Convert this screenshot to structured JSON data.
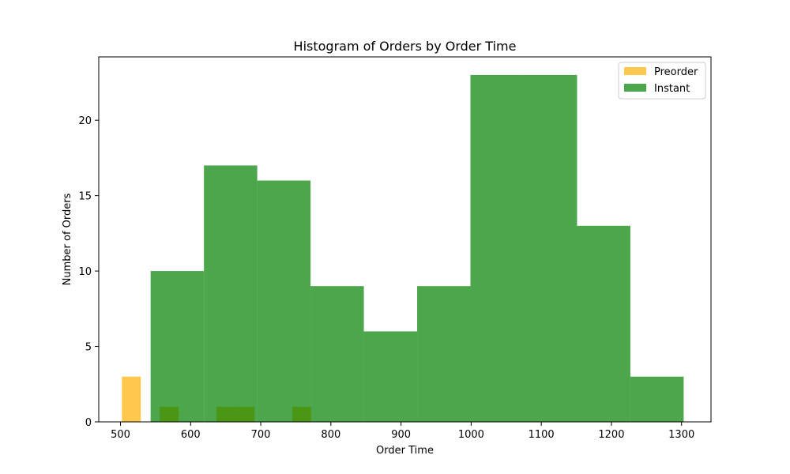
{
  "chart_data": {
    "type": "histogram",
    "title": "Histogram of Orders by Order Time",
    "xlabel": "Order Time",
    "ylabel": "Number of Orders",
    "xlim": [
      469,
      1342
    ],
    "ylim": [
      0,
      24.2
    ],
    "x_ticks": [
      500,
      600,
      700,
      800,
      900,
      1000,
      1100,
      1200,
      1300
    ],
    "y_ticks": [
      0,
      5,
      10,
      15,
      20
    ],
    "grid": false,
    "legend_position": "top-right",
    "series": [
      {
        "name": "Preorder",
        "color": "#ffb000",
        "opacity": 0.7,
        "bins": [
          {
            "start": 502,
            "end": 529,
            "count": 3
          },
          {
            "start": 529,
            "end": 556,
            "count": 0
          },
          {
            "start": 556,
            "end": 583,
            "count": 1
          },
          {
            "start": 583,
            "end": 610,
            "count": 0
          },
          {
            "start": 610,
            "end": 637,
            "count": 0
          },
          {
            "start": 637,
            "end": 664,
            "count": 1
          },
          {
            "start": 664,
            "end": 691,
            "count": 1
          },
          {
            "start": 691,
            "end": 718,
            "count": 0
          },
          {
            "start": 718,
            "end": 745,
            "count": 0
          },
          {
            "start": 745,
            "end": 772,
            "count": 1
          }
        ]
      },
      {
        "name": "Instant",
        "color": "#008000",
        "opacity": 0.7,
        "bins": [
          {
            "start": 543,
            "end": 619,
            "count": 10
          },
          {
            "start": 619,
            "end": 695,
            "count": 17
          },
          {
            "start": 695,
            "end": 771,
            "count": 16
          },
          {
            "start": 771,
            "end": 847,
            "count": 9
          },
          {
            "start": 847,
            "end": 923,
            "count": 6
          },
          {
            "start": 923,
            "end": 999,
            "count": 9
          },
          {
            "start": 999,
            "end": 1075,
            "count": 23
          },
          {
            "start": 1075,
            "end": 1151,
            "count": 23
          },
          {
            "start": 1151,
            "end": 1227,
            "count": 13
          },
          {
            "start": 1227,
            "end": 1303,
            "count": 3
          }
        ]
      }
    ]
  }
}
